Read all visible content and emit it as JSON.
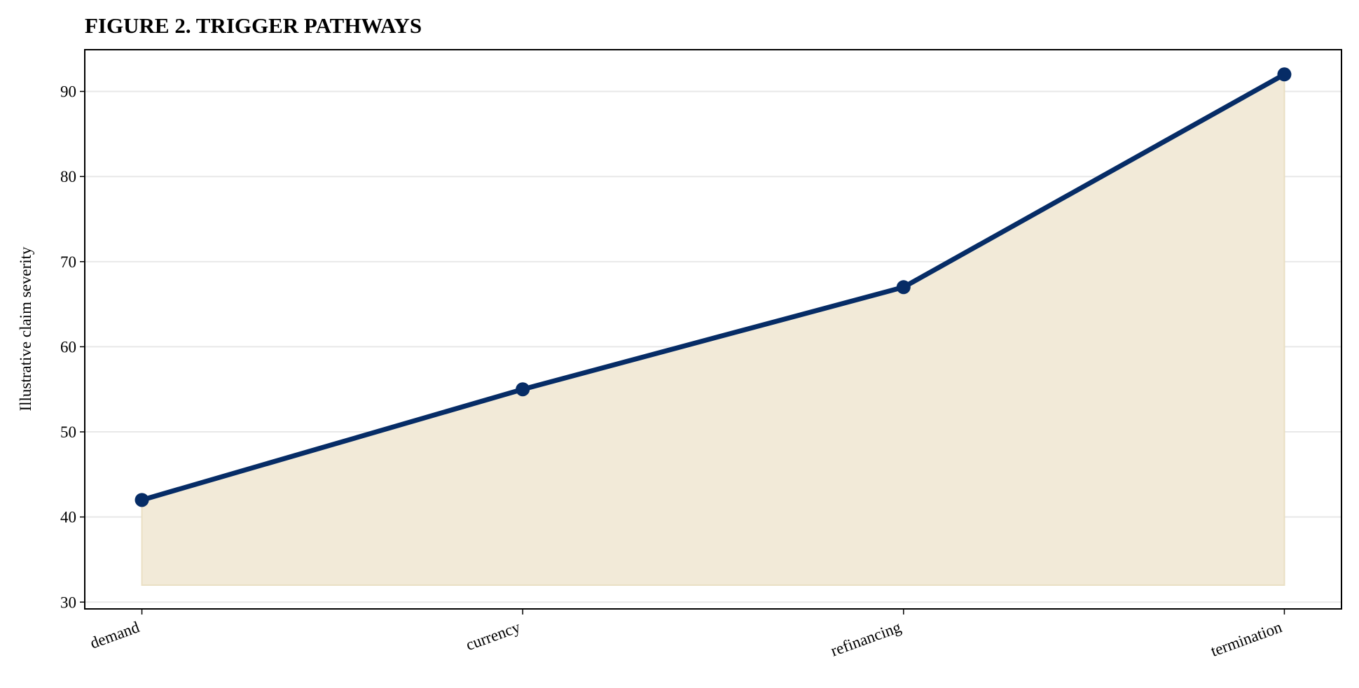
{
  "chart_data": {
    "type": "area_line",
    "title": "FIGURE 2. TRIGGER PATHWAYS",
    "y_label": "Illustrative claim severity",
    "categories": [
      "demand",
      "currency",
      "refinancing",
      "termination"
    ],
    "values": [
      42,
      55,
      67,
      92
    ],
    "color": "#062c66",
    "fill_color": "#f2ead8",
    "area_baseline": 32,
    "ylim": [
      29.2,
      94.9
    ],
    "yticks": [
      30,
      40,
      50,
      60,
      70,
      80,
      90
    ],
    "grid": true
  }
}
